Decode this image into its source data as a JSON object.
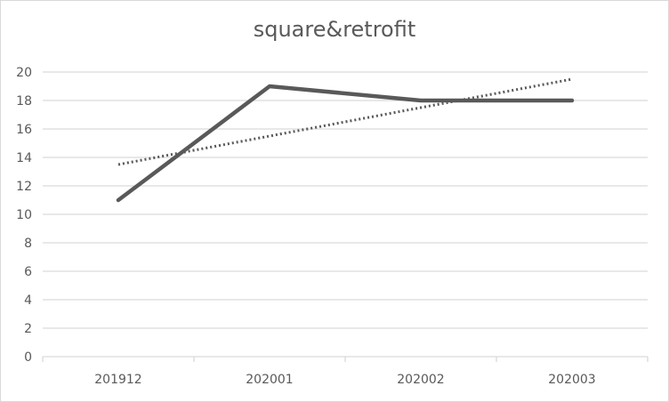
{
  "chart_data": {
    "type": "line",
    "title": "square&retrofit",
    "xlabel": "",
    "ylabel": "",
    "categories": [
      "201912",
      "202001",
      "202002",
      "202003"
    ],
    "series": [
      {
        "values": [
          11,
          19,
          18,
          18
        ],
        "color": "#595959",
        "style": "solid"
      }
    ],
    "trendline": {
      "type": "linear",
      "values": [
        13.5,
        15.5,
        17.5,
        19.5
      ],
      "color": "#595959",
      "style": "dotted"
    },
    "ylim": [
      0,
      20
    ],
    "yticks": [
      0,
      2,
      4,
      6,
      8,
      10,
      12,
      14,
      16,
      18,
      20
    ],
    "grid": true,
    "legend": "none",
    "colors": {
      "gridline": "#d9d9d9",
      "text": "#595959"
    }
  }
}
